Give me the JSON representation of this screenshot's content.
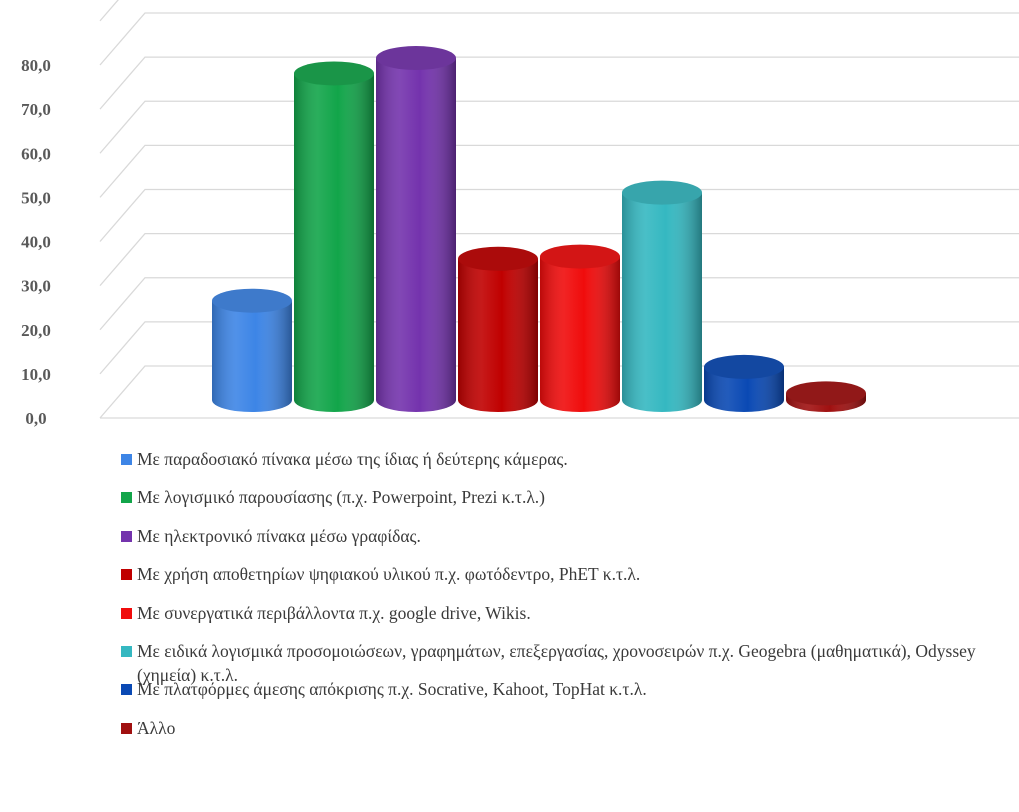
{
  "chart_data": {
    "type": "bar",
    "style": "3d-cylinder",
    "title": "",
    "xlabel": "",
    "ylabel": "",
    "ylim": [
      0,
      80
    ],
    "ytick_step": 10,
    "ytick_labels": [
      "0,0",
      "10,0",
      "20,0",
      "30,0",
      "40,0",
      "50,0",
      "60,0",
      "70,0",
      "80,0"
    ],
    "grid": true,
    "legend_position": "bottom",
    "series": [
      {
        "name": "Με παραδοσιακό πίνακα μέσω της ίδιας ή δεύτερης κάμερας.",
        "value": 22.5,
        "color": "#3d85e6"
      },
      {
        "name": "Με λογισμικό παρουσίασης (π.χ. Powerpoint,  Prezi κ.τ.λ.)",
        "value": 74.0,
        "color": "#12a54a"
      },
      {
        "name": "Με ηλεκτρονικό πίνακα μέσω γραφίδας.",
        "value": 77.5,
        "color": "#7433ad"
      },
      {
        "name": "Με χρήση αποθετηρίων ψηφιακού υλικού π.χ. φωτόδεντρο, PhET κ.τ.λ.",
        "value": 32.0,
        "color": "#c00000"
      },
      {
        "name": "Με συνεργατικά περιβάλλοντα π.χ. google drive, Wikis.",
        "value": 32.5,
        "color": "#f00c0c"
      },
      {
        "name": "Με ειδικά λογισμικά προσομοιώσεων, γραφημάτων, επεξεργασίας, χρονοσειρών π.χ. Geogebra  (μαθηματικά), Odyssey  (χημεία) κ.τ.λ.",
        "value": 47.0,
        "color": "#35b8c1"
      },
      {
        "name": "Με πλατφόρμες άμεσης απόκρισης π.χ. Socrative,  Kahoot,  TopHat κ.τ.λ.",
        "value": 7.5,
        "color": "#0a49b4"
      },
      {
        "name": "Άλλο",
        "value": 1.5,
        "color": "#a01010"
      }
    ]
  }
}
